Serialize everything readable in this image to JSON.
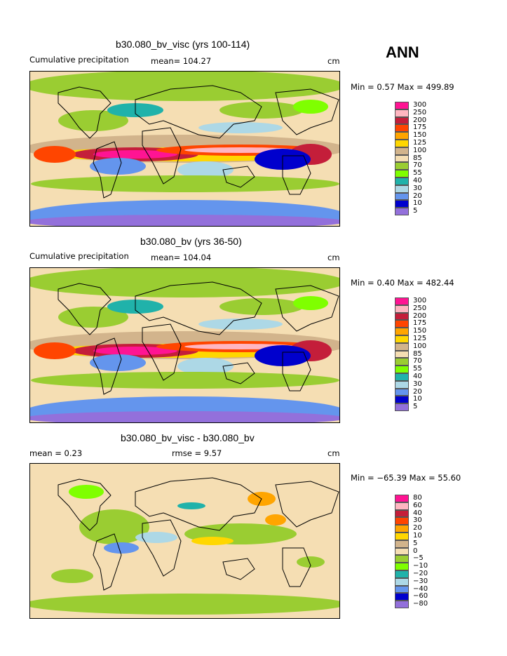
{
  "season": "ANN",
  "panels": [
    {
      "title": "b30.080_bv_visc (yrs 100-114)",
      "left_label": "Cumulative precipitation",
      "mid_label": "mean= 104.27",
      "units": "cm",
      "minmax": "Min =   0.57 Max = 499.89",
      "levels": [
        "300",
        "250",
        "200",
        "175",
        "150",
        "125",
        "100",
        "85",
        "70",
        "55",
        "40",
        "30",
        "20",
        "10",
        "5"
      ]
    },
    {
      "title": "b30.080_bv (yrs 36-50)",
      "left_label": "Cumulative precipitation",
      "mid_label": "mean= 104.04",
      "units": "cm",
      "minmax": "Min =   0.40 Max = 482.44",
      "levels": [
        "300",
        "250",
        "200",
        "175",
        "150",
        "125",
        "100",
        "85",
        "70",
        "55",
        "40",
        "30",
        "20",
        "10",
        "5"
      ]
    },
    {
      "title": "b30.080_bv_visc - b30.080_bv",
      "left_label": "mean =   0.23",
      "mid_label": "rmse =   9.57",
      "units": "cm",
      "minmax": "Min = −65.39 Max =  55.60",
      "levels": [
        "80",
        "60",
        "40",
        "30",
        "20",
        "10",
        "5",
        "0",
        "−5",
        "−10",
        "−20",
        "−30",
        "−40",
        "−60",
        "−80"
      ]
    }
  ],
  "colors": {
    "scale": [
      "#ff1493",
      "#ffb6c1",
      "#c41e3a",
      "#ff4500",
      "#ffa500",
      "#ffd700",
      "#d2b48c",
      "#f5deb3",
      "#9acd32",
      "#7fff00",
      "#20b2aa",
      "#add8e6",
      "#6495ed",
      "#0000cd",
      "#9370db"
    ]
  }
}
